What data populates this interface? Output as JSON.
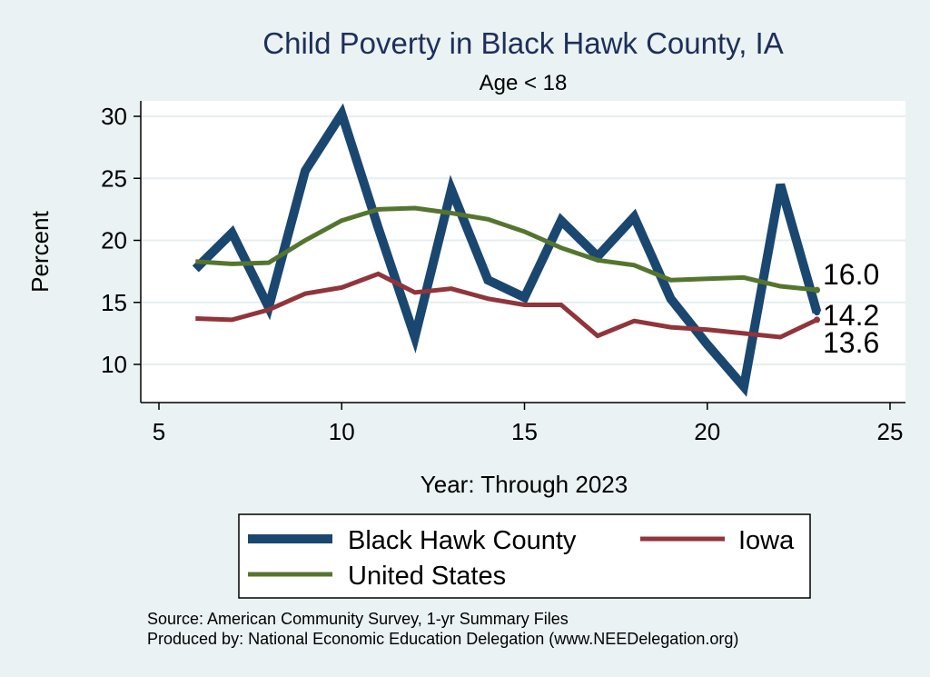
{
  "chart_data": {
    "type": "line",
    "title": "Child Poverty in Black Hawk County, IA",
    "subtitle": "Age < 18",
    "xlabel": "Year: Through 2023",
    "ylabel": "Percent",
    "xlim": [
      5,
      25
    ],
    "ylim": [
      8,
      31
    ],
    "xticks": [
      5,
      10,
      15,
      20,
      25
    ],
    "yticks": [
      10,
      15,
      20,
      25,
      30
    ],
    "grid": true,
    "legend_position": "bottom",
    "x": [
      6,
      7,
      8,
      9,
      10,
      11,
      12,
      13,
      14,
      15,
      16,
      17,
      18,
      19,
      20,
      21,
      22,
      23
    ],
    "series": [
      {
        "name": "Black Hawk County",
        "color": "#1a476f",
        "values": [
          17.7,
          20.6,
          14.6,
          25.6,
          30.2,
          21.0,
          12.2,
          24.1,
          16.8,
          15.4,
          21.6,
          18.7,
          21.9,
          15.3,
          11.6,
          8.2,
          24.5,
          14.2
        ],
        "end_label": "14.2"
      },
      {
        "name": "Iowa",
        "color": "#90353b",
        "values": [
          13.7,
          13.6,
          14.4,
          15.7,
          16.2,
          17.3,
          15.8,
          16.1,
          15.3,
          14.8,
          14.8,
          12.3,
          13.5,
          13.0,
          12.8,
          12.5,
          12.2,
          13.6
        ],
        "end_label": "13.6"
      },
      {
        "name": "United States",
        "color": "#55752f",
        "values": [
          18.3,
          18.1,
          18.2,
          20.0,
          21.6,
          22.5,
          22.6,
          22.2,
          21.7,
          20.7,
          19.4,
          18.4,
          18.0,
          16.8,
          16.9,
          17.0,
          16.3,
          16.0
        ],
        "end_label": "16.0"
      }
    ],
    "notes": [
      "Source: American Community Survey, 1-yr Summary Files",
      "Produced by: National Economic Education Delegation (www.NEEDelegation.org)"
    ]
  }
}
